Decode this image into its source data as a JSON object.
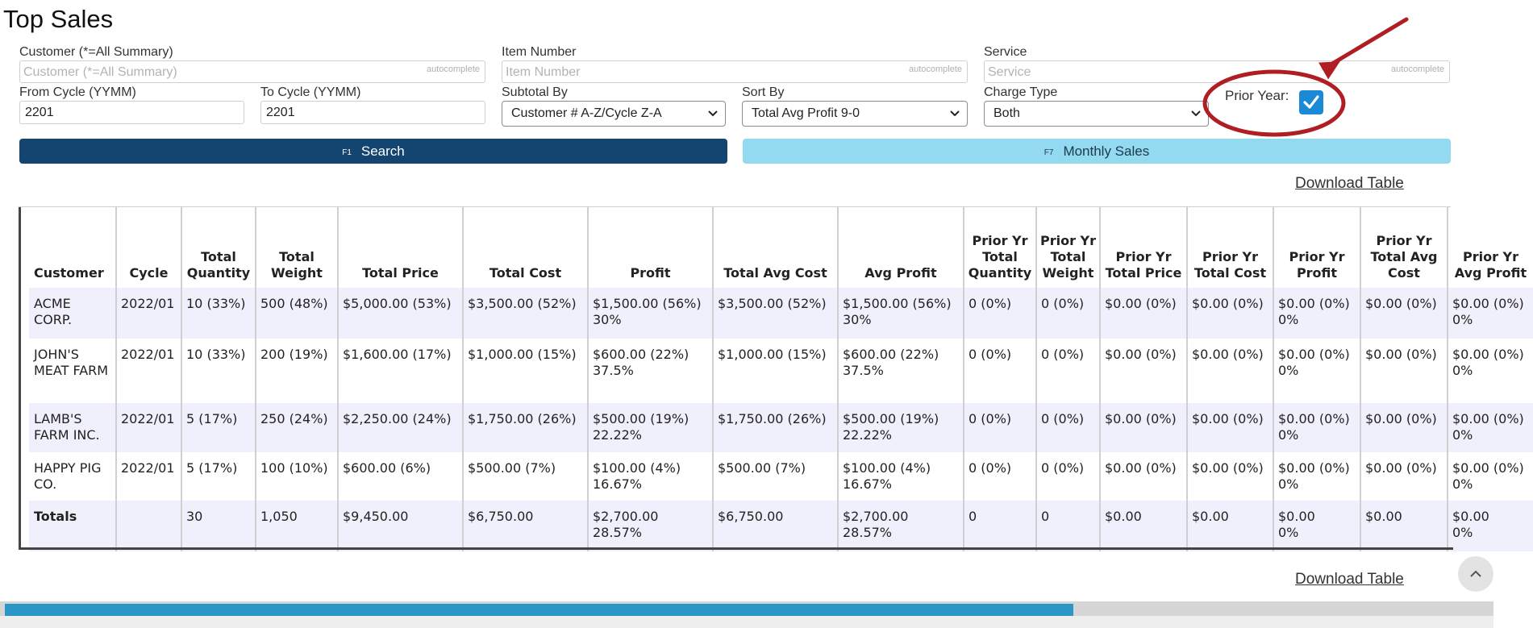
{
  "page": {
    "title": "Top Sales"
  },
  "filters": {
    "customer": {
      "label": "Customer (*=All Summary)",
      "placeholder": "Customer (*=All Summary)",
      "tag": "autocomplete"
    },
    "item_number": {
      "label": "Item Number",
      "placeholder": "Item Number",
      "tag": "autocomplete"
    },
    "service": {
      "label": "Service",
      "placeholder": "Service",
      "tag": "autocomplete"
    },
    "from_cycle": {
      "label": "From Cycle (YYMM)",
      "value": "2201"
    },
    "to_cycle": {
      "label": "To Cycle (YYMM)",
      "value": "2201"
    },
    "subtotal_by": {
      "label": "Subtotal By",
      "value": "Customer # A-Z/Cycle Z-A"
    },
    "sort_by": {
      "label": "Sort By",
      "value": "Total Avg Profit 9-0"
    },
    "charge_type": {
      "label": "Charge Type",
      "value": "Both"
    },
    "prior_year": {
      "label": "Prior Year:",
      "checked": true
    }
  },
  "annotation": {
    "color": "#b01d22"
  },
  "buttons": {
    "search": {
      "key": "F1",
      "label": "Search",
      "color": "#144570"
    },
    "monthly": {
      "key": "F7",
      "label": "Monthly Sales",
      "color": "#93d9f0"
    }
  },
  "download_label": "Download Table",
  "table": {
    "headers": [
      "Customer",
      "Cycle",
      "Total Quantity",
      "Total Weight",
      "Total Price",
      "Total Cost",
      "Profit",
      "Total Avg Cost",
      "Avg Profit",
      "Prior Yr Total Quantity",
      "Prior Yr Total Weight",
      "Prior Yr Total Price",
      "Prior Yr Total Cost",
      "Prior Yr Profit",
      "Prior Yr Total Avg Cost",
      "Prior Yr Avg Profit"
    ],
    "rows": [
      {
        "customer": "ACME CORP.",
        "cycle": "2022/01",
        "qty": "10 (33%)",
        "weight": "500 (48%)",
        "price": "$5,000.00 (53%)",
        "cost": "$3,500.00 (52%)",
        "profit": "$1,500.00 (56%)",
        "profit_pct": "30%",
        "avg_cost": "$3,500.00 (52%)",
        "avg_profit": "$1,500.00 (56%)",
        "avg_profit_pct": "30%",
        "py_qty": "0 (0%)",
        "py_weight": "0 (0%)",
        "py_price": "$0.00 (0%)",
        "py_cost": "$0.00 (0%)",
        "py_profit": "$0.00 (0%)",
        "py_profit_pct": "0%",
        "py_avg_cost": "$0.00 (0%)",
        "py_avg_profit": "$0.00 (0%)",
        "py_avg_profit_pct": "0%"
      },
      {
        "customer": "JOHN'S MEAT FARM",
        "cycle": "2022/01",
        "qty": "10 (33%)",
        "weight": "200 (19%)",
        "price": "$1,600.00 (17%)",
        "cost": "$1,000.00 (15%)",
        "profit": "$600.00 (22%)",
        "profit_pct": "37.5%",
        "avg_cost": "$1,000.00 (15%)",
        "avg_profit": "$600.00 (22%)",
        "avg_profit_pct": "37.5%",
        "py_qty": "0 (0%)",
        "py_weight": "0 (0%)",
        "py_price": "$0.00 (0%)",
        "py_cost": "$0.00 (0%)",
        "py_profit": "$0.00 (0%)",
        "py_profit_pct": "0%",
        "py_avg_cost": "$0.00 (0%)",
        "py_avg_profit": "$0.00 (0%)",
        "py_avg_profit_pct": "0%"
      },
      {
        "customer": "LAMB'S FARM INC.",
        "cycle": "2022/01",
        "qty": "5 (17%)",
        "weight": "250 (24%)",
        "price": "$2,250.00 (24%)",
        "cost": "$1,750.00 (26%)",
        "profit": "$500.00 (19%)",
        "profit_pct": "22.22%",
        "avg_cost": "$1,750.00 (26%)",
        "avg_profit": "$500.00 (19%)",
        "avg_profit_pct": "22.22%",
        "py_qty": "0 (0%)",
        "py_weight": "0 (0%)",
        "py_price": "$0.00 (0%)",
        "py_cost": "$0.00 (0%)",
        "py_profit": "$0.00 (0%)",
        "py_profit_pct": "0%",
        "py_avg_cost": "$0.00 (0%)",
        "py_avg_profit": "$0.00 (0%)",
        "py_avg_profit_pct": "0%"
      },
      {
        "customer": "HAPPY PIG CO.",
        "cycle": "2022/01",
        "qty": "5 (17%)",
        "weight": "100 (10%)",
        "price": "$600.00 (6%)",
        "cost": "$500.00 (7%)",
        "profit": "$100.00 (4%)",
        "profit_pct": "16.67%",
        "avg_cost": "$500.00 (7%)",
        "avg_profit": "$100.00 (4%)",
        "avg_profit_pct": "16.67%",
        "py_qty": "0 (0%)",
        "py_weight": "0 (0%)",
        "py_price": "$0.00 (0%)",
        "py_cost": "$0.00 (0%)",
        "py_profit": "$0.00 (0%)",
        "py_profit_pct": "0%",
        "py_avg_cost": "$0.00 (0%)",
        "py_avg_profit": "$0.00 (0%)",
        "py_avg_profit_pct": "0%"
      }
    ],
    "totals": {
      "label": "Totals",
      "cycle": "",
      "qty": "30",
      "weight": "1,050",
      "price": "$9,450.00",
      "cost": "$6,750.00",
      "profit": "$2,700.00",
      "profit_pct": "28.57%",
      "avg_cost": "$6,750.00",
      "avg_profit": "$2,700.00",
      "avg_profit_pct": "28.57%",
      "py_qty": "0",
      "py_weight": "0",
      "py_price": "$0.00",
      "py_cost": "$0.00",
      "py_profit": "$0.00",
      "py_profit_pct": "0%",
      "py_avg_cost": "$0.00",
      "py_avg_profit": "$0.00",
      "py_avg_profit_pct": "0%"
    }
  },
  "scrollbar": {
    "position_fraction": 0.0,
    "visible_fraction": 0.72
  }
}
